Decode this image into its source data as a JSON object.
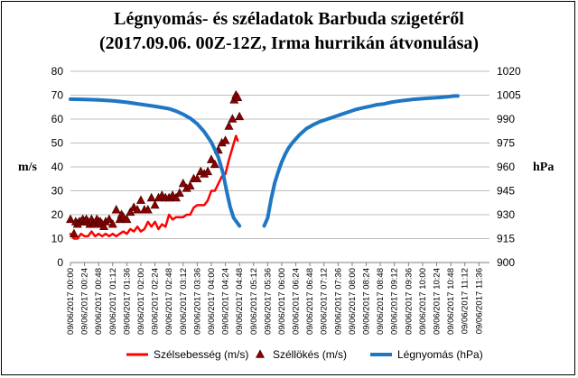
{
  "chart_data": {
    "type": "line",
    "title": "Légnyomás- és széladatok Barbuda szigetéről",
    "subtitle": "(2017.09.06. 00Z-12Z, Irma hurrikán átvonulása)",
    "ylabel": "m/s",
    "y2label": "hPa",
    "ylim": [
      0,
      80
    ],
    "y2lim": [
      900,
      1020
    ],
    "yticks": [
      "0",
      "10",
      "20",
      "30",
      "40",
      "50",
      "60",
      "70",
      "80"
    ],
    "y2ticks": [
      "900",
      "915",
      "930",
      "945",
      "960",
      "975",
      "990",
      "1005",
      "1020"
    ],
    "grid": "horizontal",
    "legend_position": "bottom",
    "xlabels": [
      "09/06/2017 00:00",
      "09/06/2017 00:24",
      "09/06/2017 00:48",
      "09/06/2017 01:12",
      "09/06/2017 01:36",
      "09/06/2017 02:00",
      "09/06/2017 02:24",
      "09/06/2017 02:48",
      "09/06/2017 03:12",
      "09/06/2017 03:36",
      "09/06/2017 04:00",
      "09/06/2017 04:24",
      "09/06/2017 04:48",
      "09/06/2017 05:12",
      "09/06/2017 05:36",
      "09/06/2017 06:00",
      "09/06/2017 06:24",
      "09/06/2017 06:48",
      "09/06/2017 07:12",
      "09/06/2017 07:36",
      "09/06/2017 08:00",
      "09/06/2017 08:24",
      "09/06/2017 08:48",
      "09/06/2017 09:12",
      "09/06/2017 09:36",
      "09/06/2017 10:00",
      "09/06/2017 10:24",
      "09/06/2017 10:48",
      "09/06/2017 11:12",
      "09/06/2017 11:36"
    ],
    "series": [
      {
        "name": "Szélsebesség (m/s)",
        "axis": "left",
        "color": "#ff0000",
        "style": "line",
        "points": [
          [
            0,
            12
          ],
          [
            6,
            10
          ],
          [
            12,
            10
          ],
          [
            18,
            12
          ],
          [
            24,
            11
          ],
          [
            30,
            11
          ],
          [
            36,
            13
          ],
          [
            42,
            11
          ],
          [
            48,
            12
          ],
          [
            54,
            11
          ],
          [
            60,
            12
          ],
          [
            66,
            11
          ],
          [
            72,
            12
          ],
          [
            78,
            11
          ],
          [
            84,
            12
          ],
          [
            90,
            13
          ],
          [
            96,
            12
          ],
          [
            102,
            14
          ],
          [
            108,
            13
          ],
          [
            114,
            15
          ],
          [
            120,
            13
          ],
          [
            126,
            14
          ],
          [
            132,
            17
          ],
          [
            138,
            15
          ],
          [
            144,
            17
          ],
          [
            150,
            14
          ],
          [
            156,
            16
          ],
          [
            162,
            15
          ],
          [
            168,
            20
          ],
          [
            174,
            18
          ],
          [
            180,
            19
          ],
          [
            186,
            19
          ],
          [
            192,
            19
          ],
          [
            198,
            20
          ],
          [
            204,
            20
          ],
          [
            210,
            23
          ],
          [
            216,
            24
          ],
          [
            222,
            24
          ],
          [
            228,
            24
          ],
          [
            234,
            26
          ],
          [
            240,
            30
          ],
          [
            246,
            30
          ],
          [
            252,
            33
          ],
          [
            258,
            36
          ],
          [
            264,
            37
          ],
          [
            270,
            43
          ],
          [
            276,
            48
          ],
          [
            282,
            53
          ],
          [
            285,
            51
          ]
        ]
      },
      {
        "name": "Széllökés (m/s)",
        "axis": "left",
        "color": "#8b0000",
        "style": "marker",
        "points": [
          [
            0,
            18
          ],
          [
            6,
            12
          ],
          [
            9,
            17
          ],
          [
            12,
            16
          ],
          [
            15,
            17
          ],
          [
            18,
            17
          ],
          [
            21,
            18
          ],
          [
            24,
            17
          ],
          [
            27,
            18
          ],
          [
            30,
            17
          ],
          [
            33,
            16
          ],
          [
            36,
            18
          ],
          [
            39,
            16
          ],
          [
            42,
            16
          ],
          [
            45,
            18
          ],
          [
            48,
            17
          ],
          [
            51,
            17
          ],
          [
            54,
            16
          ],
          [
            57,
            15
          ],
          [
            60,
            17
          ],
          [
            66,
            18
          ],
          [
            72,
            16
          ],
          [
            78,
            22
          ],
          [
            84,
            18
          ],
          [
            87,
            20
          ],
          [
            90,
            19
          ],
          [
            96,
            18
          ],
          [
            102,
            21
          ],
          [
            108,
            23
          ],
          [
            114,
            22
          ],
          [
            120,
            26
          ],
          [
            126,
            22
          ],
          [
            132,
            22
          ],
          [
            138,
            27
          ],
          [
            144,
            24
          ],
          [
            150,
            27
          ],
          [
            156,
            28
          ],
          [
            162,
            27
          ],
          [
            168,
            27
          ],
          [
            174,
            28
          ],
          [
            180,
            27
          ],
          [
            186,
            29
          ],
          [
            192,
            33
          ],
          [
            198,
            31
          ],
          [
            204,
            32
          ],
          [
            210,
            35
          ],
          [
            216,
            35
          ],
          [
            222,
            38
          ],
          [
            228,
            37
          ],
          [
            234,
            38
          ],
          [
            240,
            43
          ],
          [
            246,
            41
          ],
          [
            252,
            47
          ],
          [
            258,
            50
          ],
          [
            264,
            51
          ],
          [
            270,
            57
          ],
          [
            276,
            60
          ],
          [
            279,
            68
          ],
          [
            282,
            70
          ],
          [
            285,
            69
          ],
          [
            288,
            61
          ]
        ]
      },
      {
        "name": "Légnyomás (hPa)",
        "axis": "right",
        "color": "#1f77c4",
        "style": "line",
        "segments": [
          [
            [
              0,
              1002.5
            ],
            [
              24,
              1002.3
            ],
            [
              48,
              1002
            ],
            [
              72,
              1001.5
            ],
            [
              96,
              1000.5
            ],
            [
              120,
              999.3
            ],
            [
              144,
              998
            ],
            [
              168,
              996.5
            ],
            [
              180,
              995
            ],
            [
              192,
              993
            ],
            [
              204,
              990.5
            ],
            [
              216,
              987
            ],
            [
              228,
              982
            ],
            [
              240,
              975.5
            ],
            [
              252,
              966
            ],
            [
              260,
              956
            ],
            [
              266,
              945
            ],
            [
              272,
              935
            ],
            [
              278,
              928
            ],
            [
              288,
              923
            ]
          ],
          [
            [
              330,
              923
            ],
            [
              336,
              928
            ],
            [
              342,
              940
            ],
            [
              348,
              950
            ],
            [
              354,
              957
            ],
            [
              360,
              963
            ],
            [
              366,
              968
            ],
            [
              372,
              972
            ],
            [
              378,
              975
            ],
            [
              384,
              977.5
            ],
            [
              390,
              980
            ],
            [
              402,
              984
            ],
            [
              414,
              986.5
            ],
            [
              426,
              988.5
            ],
            [
              438,
              990
            ],
            [
              450,
              991.5
            ],
            [
              462,
              993
            ],
            [
              474,
              994.5
            ],
            [
              486,
              996
            ],
            [
              498,
              997
            ],
            [
              510,
              998
            ],
            [
              522,
              999
            ],
            [
              534,
              999.5
            ],
            [
              546,
              1000.5
            ],
            [
              558,
              1001.2
            ],
            [
              570,
              1001.8
            ],
            [
              582,
              1002.3
            ],
            [
              594,
              1002.7
            ],
            [
              606,
              1003
            ],
            [
              618,
              1003.3
            ],
            [
              630,
              1003.6
            ],
            [
              642,
              1004
            ],
            [
              654,
              1004.5
            ],
            [
              660,
              1004.5
            ]
          ]
        ]
      }
    ]
  }
}
